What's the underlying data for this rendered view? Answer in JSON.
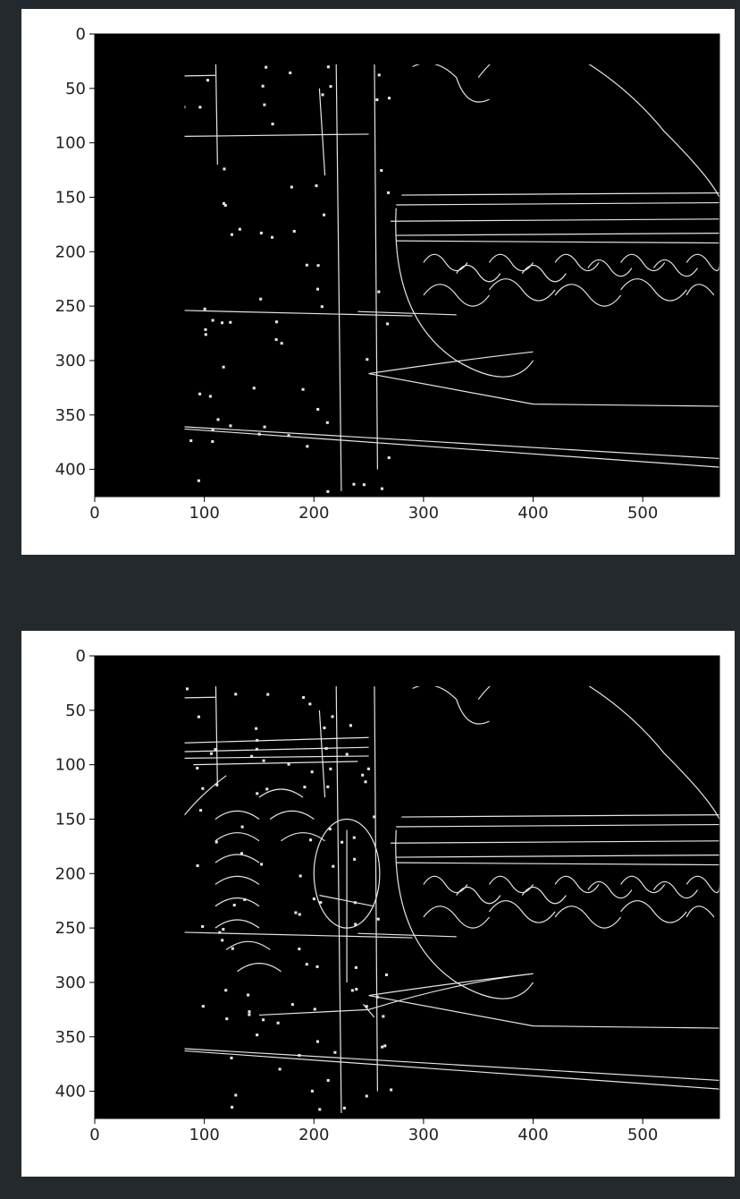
{
  "chart_data": [
    {
      "type": "image",
      "title": "",
      "xlabel": "",
      "ylabel": "",
      "xlim": [
        0,
        570
      ],
      "ylim": [
        425,
        0
      ],
      "xticks": [
        0,
        100,
        200,
        300,
        400,
        500
      ],
      "yticks": [
        0,
        50,
        100,
        150,
        200,
        250,
        300,
        350,
        400
      ],
      "grid": false,
      "colormap": "gray",
      "background": "#000000",
      "edge_color": "#e6e6e6"
    },
    {
      "type": "image",
      "title": "",
      "xlabel": "",
      "ylabel": "",
      "xlim": [
        0,
        570
      ],
      "ylim": [
        425,
        0
      ],
      "xticks": [
        0,
        100,
        200,
        300,
        400,
        500
      ],
      "yticks": [
        0,
        50,
        100,
        150,
        200,
        250,
        300,
        350,
        400
      ],
      "grid": false,
      "colormap": "gray",
      "background": "#000000",
      "edge_color": "#e6e6e6"
    }
  ]
}
